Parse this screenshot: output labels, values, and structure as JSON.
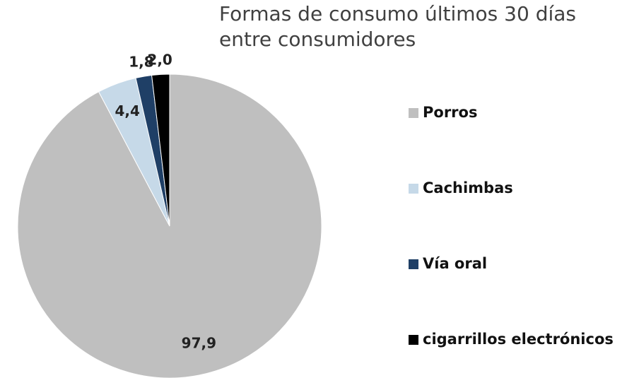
{
  "chart_data": {
    "type": "pie",
    "title": "Formas de consumo últimos 30 días entre consumidores",
    "categories": [
      "Porros",
      "Cachimbas",
      "Vía oral",
      "cigarrillos electrónicos"
    ],
    "values": [
      97.9,
      4.4,
      1.8,
      2.0
    ],
    "value_labels": [
      "97,9",
      "4,4",
      "1,8",
      "2,0"
    ],
    "colors": [
      "#bfbfbf",
      "#c6d9e8",
      "#1f3f66",
      "#000000"
    ],
    "legend": "right"
  }
}
